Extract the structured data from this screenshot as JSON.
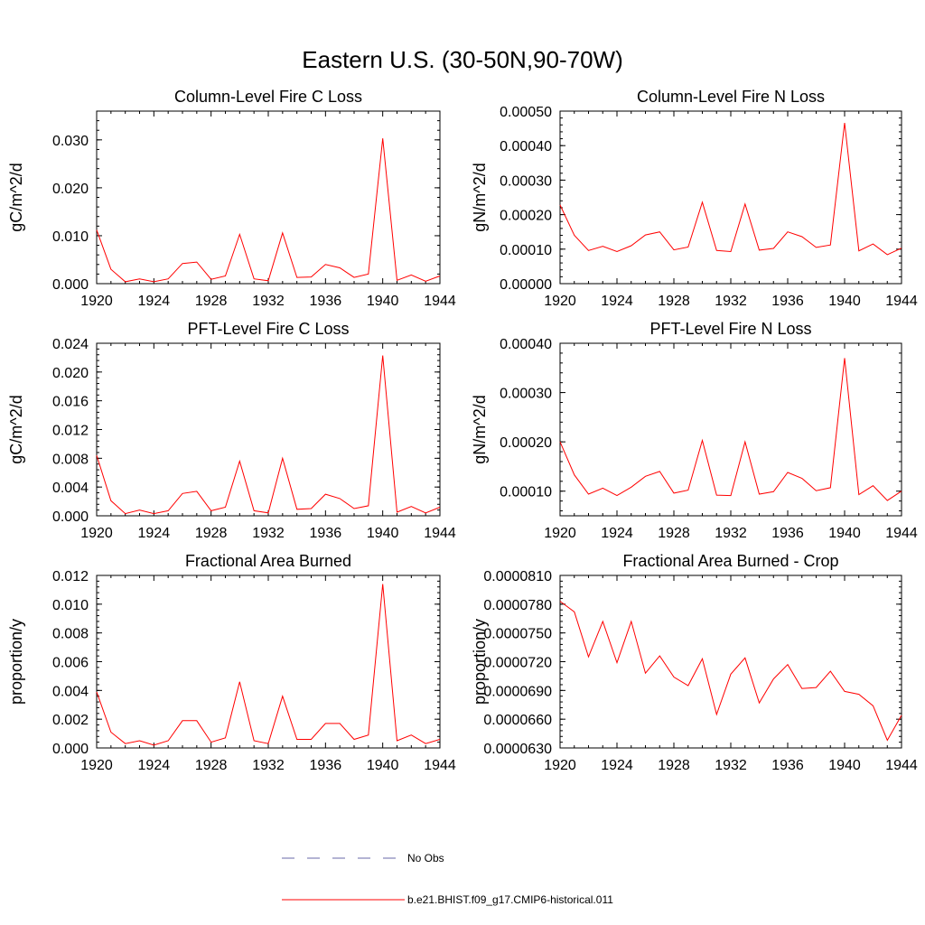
{
  "page_title": "Eastern U.S. (30-50N,90-70W)",
  "colors": {
    "model": "#ff0000",
    "obs": "#6a6aa8",
    "axis": "#000000"
  },
  "legend": {
    "placement": "bottom-center",
    "entries": [
      {
        "label": "No Obs",
        "style": "dashed",
        "color": "#6a6aa8"
      },
      {
        "label": "b.e21.BHIST.f09_g17.CMIP6-historical.011",
        "style": "solid",
        "color": "#ff0000"
      }
    ]
  },
  "chart_data": [
    {
      "type": "line",
      "title": "Column-Level Fire C Loss",
      "ylabel": "gC/m^2/d",
      "xlim": [
        1920,
        1944
      ],
      "ylim": [
        0,
        0.036
      ],
      "x_ticks": [
        "1920",
        "1924",
        "1928",
        "1932",
        "1936",
        "1940",
        "1944"
      ],
      "y_ticks": [
        "0.000",
        "0.010",
        "0.020",
        "0.030"
      ],
      "series": [
        {
          "name": "b.e21.BHIST.f09_g17.CMIP6-historical.011",
          "x": [
            1920,
            1921,
            1922,
            1923,
            1924,
            1925,
            1926,
            1927,
            1928,
            1929,
            1930,
            1931,
            1932,
            1933,
            1934,
            1935,
            1936,
            1937,
            1938,
            1939,
            1940,
            1941,
            1942,
            1943,
            1944
          ],
          "values": [
            0.0112,
            0.003,
            0.0004,
            0.001,
            0.0004,
            0.001,
            0.0042,
            0.0045,
            0.0009,
            0.0016,
            0.0103,
            0.001,
            0.0006,
            0.0106,
            0.0013,
            0.0014,
            0.004,
            0.0033,
            0.0013,
            0.002,
            0.0303,
            0.0007,
            0.0018,
            0.0005,
            0.0016
          ]
        }
      ]
    },
    {
      "type": "line",
      "title": "Column-Level Fire N Loss",
      "ylabel": "gN/m^2/d",
      "xlim": [
        1920,
        1944
      ],
      "ylim": [
        0,
        0.0005
      ],
      "x_ticks": [
        "1920",
        "1924",
        "1928",
        "1932",
        "1936",
        "1940",
        "1944"
      ],
      "y_ticks": [
        "0.00000",
        "0.00010",
        "0.00020",
        "0.00030",
        "0.00040",
        "0.00050"
      ],
      "series": [
        {
          "name": "b.e21.BHIST.f09_g17.CMIP6-historical.011",
          "x": [
            1920,
            1921,
            1922,
            1923,
            1924,
            1925,
            1926,
            1927,
            1928,
            1929,
            1930,
            1931,
            1932,
            1933,
            1934,
            1935,
            1936,
            1937,
            1938,
            1939,
            1940,
            1941,
            1942,
            1943,
            1944
          ],
          "values": [
            0.000228,
            0.00014,
            9.6e-05,
            0.000108,
            9.3e-05,
            0.00011,
            0.000141,
            0.00015,
            9.8e-05,
            0.000106,
            0.000236,
            9.6e-05,
            9.3e-05,
            0.000231,
            9.7e-05,
            0.000102,
            0.00015,
            0.000136,
            0.000105,
            0.000112,
            0.000466,
            9.5e-05,
            0.000115,
            8.4e-05,
            0.000103
          ]
        }
      ]
    },
    {
      "type": "line",
      "title": "PFT-Level Fire C Loss",
      "ylabel": "gC/m^2/d",
      "xlim": [
        1920,
        1944
      ],
      "ylim": [
        0,
        0.024
      ],
      "x_ticks": [
        "1920",
        "1924",
        "1928",
        "1932",
        "1936",
        "1940",
        "1944"
      ],
      "y_ticks": [
        "0.000",
        "0.004",
        "0.008",
        "0.012",
        "0.016",
        "0.020",
        "0.024"
      ],
      "series": [
        {
          "name": "b.e21.BHIST.f09_g17.CMIP6-historical.011",
          "x": [
            1920,
            1921,
            1922,
            1923,
            1924,
            1925,
            1926,
            1927,
            1928,
            1929,
            1930,
            1931,
            1932,
            1933,
            1934,
            1935,
            1936,
            1937,
            1938,
            1939,
            1940,
            1941,
            1942,
            1943,
            1944
          ],
          "values": [
            0.0084,
            0.0021,
            0.0003,
            0.0008,
            0.0003,
            0.0007,
            0.0031,
            0.0034,
            0.0007,
            0.0012,
            0.0076,
            0.0007,
            0.0004,
            0.008,
            0.0009,
            0.001,
            0.003,
            0.0024,
            0.001,
            0.0014,
            0.0223,
            0.0005,
            0.0013,
            0.0004,
            0.0012
          ]
        }
      ]
    },
    {
      "type": "line",
      "title": "PFT-Level Fire N Loss",
      "ylabel": "gN/m^2/d",
      "xlim": [
        1920,
        1944
      ],
      "ylim": [
        5e-05,
        0.0004
      ],
      "x_ticks": [
        "1920",
        "1924",
        "1928",
        "1932",
        "1936",
        "1940",
        "1944"
      ],
      "y_ticks": [
        "0.00010",
        "0.00020",
        "0.00030",
        "0.00040"
      ],
      "series": [
        {
          "name": "b.e21.BHIST.f09_g17.CMIP6-historical.011",
          "x": [
            1920,
            1921,
            1922,
            1923,
            1924,
            1925,
            1926,
            1927,
            1928,
            1929,
            1930,
            1931,
            1932,
            1933,
            1934,
            1935,
            1936,
            1937,
            1938,
            1939,
            1940,
            1941,
            1942,
            1943,
            1944
          ],
          "values": [
            0.0002,
            0.000133,
            9.4e-05,
            0.000106,
            9.1e-05,
            0.000108,
            0.00013,
            0.00014,
            9.6e-05,
            0.000102,
            0.000203,
            9.2e-05,
            9.1e-05,
            0.0002,
            9.4e-05,
            9.9e-05,
            0.000138,
            0.000126,
            0.000101,
            0.000107,
            0.00037,
            9.3e-05,
            0.000111,
            8.1e-05,
            0.0001
          ]
        }
      ]
    },
    {
      "type": "line",
      "title": "Fractional Area Burned",
      "ylabel": "proportion/y",
      "xlim": [
        1920,
        1944
      ],
      "ylim": [
        0,
        0.012
      ],
      "x_ticks": [
        "1920",
        "1924",
        "1928",
        "1932",
        "1936",
        "1940",
        "1944"
      ],
      "y_ticks": [
        "0.000",
        "0.002",
        "0.004",
        "0.006",
        "0.008",
        "0.010",
        "0.012"
      ],
      "series": [
        {
          "name": "b.e21.BHIST.f09_g17.CMIP6-historical.011",
          "x": [
            1920,
            1921,
            1922,
            1923,
            1924,
            1925,
            1926,
            1927,
            1928,
            1929,
            1930,
            1931,
            1932,
            1933,
            1934,
            1935,
            1936,
            1937,
            1938,
            1939,
            1940,
            1941,
            1942,
            1943,
            1944
          ],
          "values": [
            0.0039,
            0.0011,
            0.0003,
            0.0005,
            0.0002,
            0.0005,
            0.0019,
            0.0019,
            0.0004,
            0.0007,
            0.0046,
            0.0005,
            0.0003,
            0.0036,
            0.0006,
            0.0006,
            0.0017,
            0.0017,
            0.0006,
            0.0009,
            0.0114,
            0.0005,
            0.0009,
            0.0003,
            0.0006
          ]
        }
      ]
    },
    {
      "type": "line",
      "title": "Fractional Area Burned - Crop",
      "ylabel": "proportion/y",
      "xlim": [
        1920,
        1944
      ],
      "ylim": [
        6.3e-05,
        8.1e-05
      ],
      "x_ticks": [
        "1920",
        "1924",
        "1928",
        "1932",
        "1936",
        "1940",
        "1944"
      ],
      "y_ticks": [
        "0.0000630",
        "0.0000660",
        "0.0000690",
        "0.0000720",
        "0.0000750",
        "0.0000780",
        "0.0000810"
      ],
      "series": [
        {
          "name": "b.e21.BHIST.f09_g17.CMIP6-historical.011",
          "x": [
            1920,
            1921,
            1922,
            1923,
            1924,
            1925,
            1926,
            1927,
            1928,
            1929,
            1930,
            1931,
            1932,
            1933,
            1934,
            1935,
            1936,
            1937,
            1938,
            1939,
            1940,
            1941,
            1942,
            1943,
            1944
          ],
          "values": [
            7.83e-05,
            7.72e-05,
            7.25e-05,
            7.62e-05,
            7.19e-05,
            7.62e-05,
            7.08e-05,
            7.26e-05,
            7.04e-05,
            6.95e-05,
            7.23e-05,
            6.65e-05,
            7.07e-05,
            7.24e-05,
            6.77e-05,
            7.02e-05,
            7.17e-05,
            6.92e-05,
            6.93e-05,
            7.1e-05,
            6.89e-05,
            6.86e-05,
            6.74e-05,
            6.38e-05,
            6.64e-05
          ]
        }
      ]
    }
  ]
}
